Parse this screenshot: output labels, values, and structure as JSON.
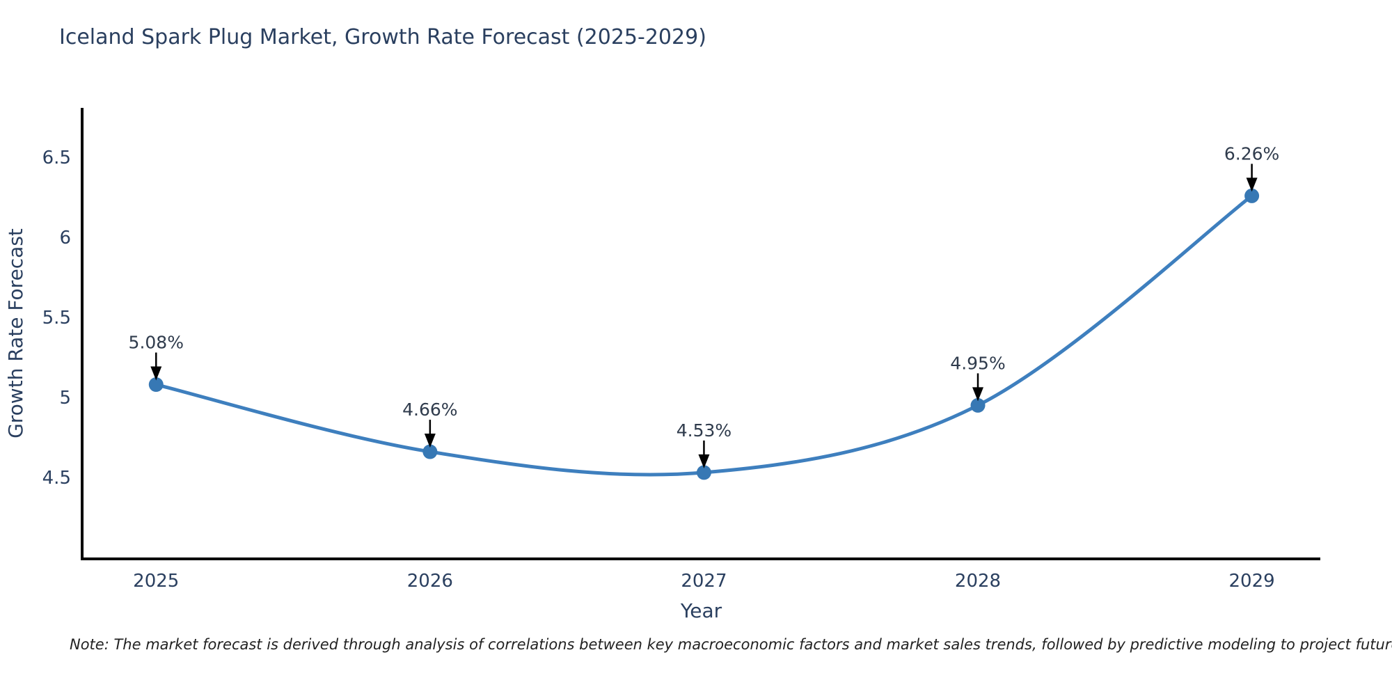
{
  "chart_data": {
    "type": "line",
    "title": "Iceland Spark Plug Market, Growth Rate Forecast (2025-2029)",
    "xlabel": "Year",
    "ylabel": "Growth Rate Forecast",
    "x": [
      2025,
      2026,
      2027,
      2028,
      2029
    ],
    "values": [
      5.08,
      4.66,
      4.53,
      4.95,
      6.26
    ],
    "point_labels": [
      "5.08%",
      "4.66%",
      "4.53%",
      "4.95%",
      "6.26%"
    ],
    "xtick_labels": [
      "2025",
      "2026",
      "2027",
      "2028",
      "2029"
    ],
    "ytick_values": [
      4.5,
      5,
      5.5,
      6,
      6.5
    ],
    "ytick_labels": [
      "4.5",
      "5",
      "5.5",
      "6",
      "6.5"
    ],
    "xlim": [
      2024.73,
      2029.25
    ],
    "ylim": [
      3.99,
      6.81
    ],
    "line_shape": "spline",
    "grid": false,
    "legend": false,
    "line_color": "#3E7FBE",
    "marker_color": "#3778B4",
    "annotation_arrow_color": "#000000"
  },
  "footnote": "Note: The market forecast is derived through analysis of correlations between key macroeconomic factors and market sales trends, followed by predictive modeling to project future sales",
  "colors": {
    "title_text": "#2a3f5f",
    "axis_text": "#2a3f5f",
    "annotation_text": "#2f3b4c",
    "axis_line": "#000000",
    "background": "#ffffff"
  }
}
